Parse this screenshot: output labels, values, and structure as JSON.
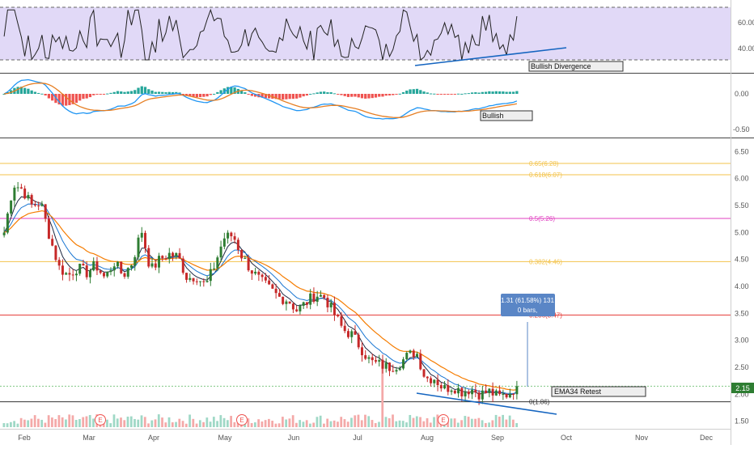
{
  "colors": {
    "up": "#26a69a",
    "down": "#ef5350",
    "up_candle": "#2e7d32",
    "down_candle": "#c62828",
    "ema_short": "#1f2a44",
    "ema_mid": "#1976d2",
    "ema34": "#f57c00",
    "rsi_band": "#e1d9f7",
    "rsi_line": "#222222",
    "macd_line": "#2196f3",
    "signal_line": "#e67e22",
    "fib_gold": "#f3c34b",
    "fib_magenta": "#e040c0",
    "fib_red": "#e53935",
    "trendline": "#1565c0",
    "volume_up": "#9fd8c6",
    "volume_down": "#f4a9a8",
    "price_tag": "#2e7d32",
    "measure_box": "#5a86c6"
  },
  "rsi_panel": {
    "axis_labels": [
      "60.00",
      "40.00"
    ],
    "annotation": "Bullish Divergence"
  },
  "macd_panel": {
    "axis_labels": [
      "0.00",
      "-0.50"
    ],
    "annotation": "Bullish"
  },
  "price_panel": {
    "axis_labels": [
      "6.50",
      "6.00",
      "5.50",
      "5.00",
      "4.50",
      "4.00",
      "3.50",
      "3.00",
      "2.50",
      "2.00",
      "1.50"
    ],
    "current_price": "2.15",
    "annotation": "EMA34 Retest",
    "measure_line1": "1.31 (61.58%) 131",
    "measure_line2": "0 bars,"
  },
  "time_axis": [
    "Feb",
    "Mar",
    "Apr",
    "May",
    "Jun",
    "Jul",
    "Aug",
    "Sep",
    "Oct",
    "Nov",
    "Dec"
  ],
  "earnings_marker": "E",
  "chart_data": {
    "type": "candlestick",
    "price_range": [
      1.45,
      6.55
    ],
    "fib_levels": [
      {
        "label": "0.65(6.28)",
        "value": 6.28
      },
      {
        "label": "0.618(6.07)",
        "value": 6.07
      },
      {
        "label": "0.5(5.26)",
        "value": 5.26
      },
      {
        "label": "0.382(4.46)",
        "value": 4.46
      },
      {
        "label": "0.236(3.47)",
        "value": 3.47
      },
      {
        "label": "0(1.86)",
        "value": 1.86
      }
    ],
    "close_path": [
      5.0,
      5.9,
      5.8,
      5.5,
      5.55,
      4.9,
      4.35,
      4.2,
      4.35,
      4.25,
      4.4,
      4.15,
      4.45,
      4.2,
      4.45,
      5.05,
      4.3,
      4.5,
      4.6,
      4.55,
      4.15,
      4.2,
      4.0,
      4.4,
      4.9,
      4.95,
      4.55,
      4.3,
      4.1,
      3.95,
      3.8,
      3.75,
      3.55,
      3.7,
      3.85,
      3.8,
      3.5,
      3.2,
      3.1,
      2.85,
      2.6,
      2.55,
      2.5,
      2.55,
      2.7,
      2.8,
      2.3,
      2.3,
      2.1,
      2.15,
      2.05,
      2.1,
      2.0,
      2.05,
      1.95,
      2.0,
      2.15
    ]
  }
}
